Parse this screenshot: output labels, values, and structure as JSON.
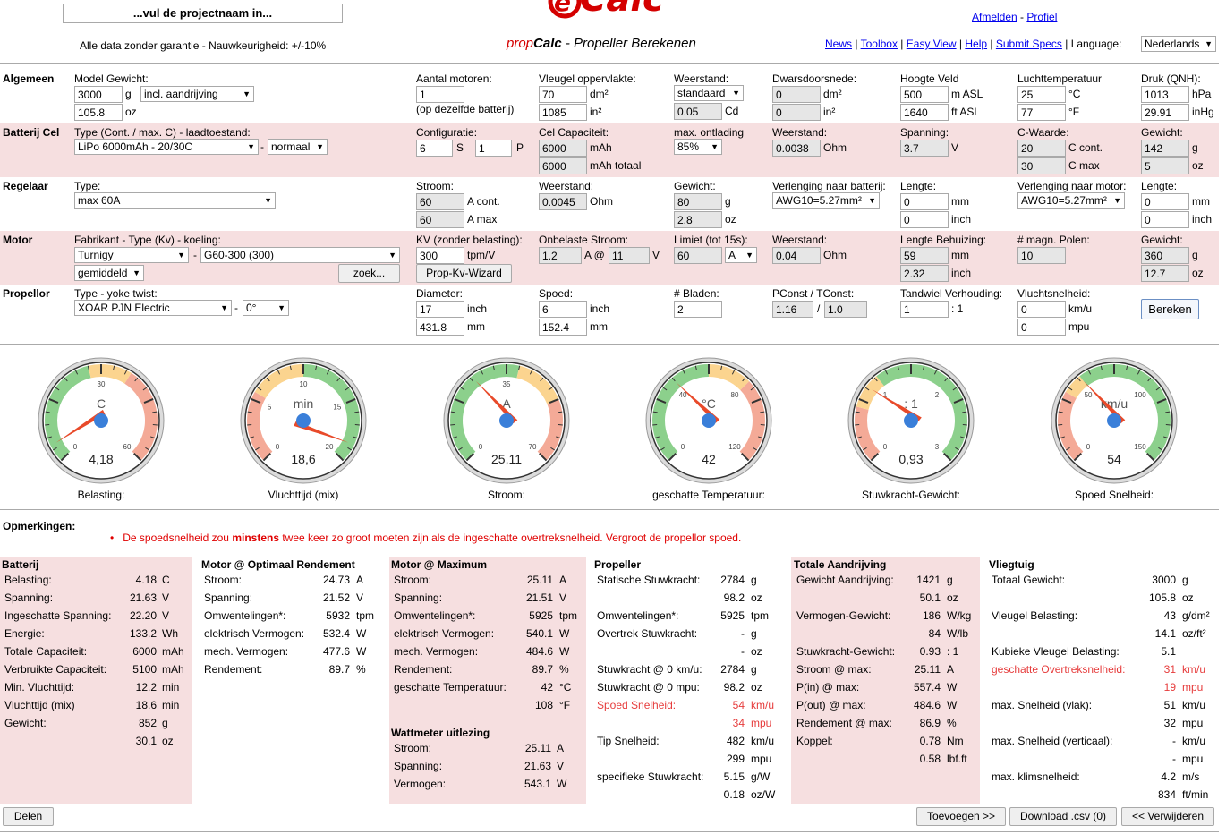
{
  "header": {
    "project_placeholder": "...vul de projectnaam in...",
    "disclaimer": "Alle data zonder garantie - Nauwkeurigheid: +/-10%",
    "logo_text": "eCalc",
    "subtitle_prop": "prop",
    "subtitle_calc": "Calc",
    "subtitle_rest": " - Propeller Berekenen",
    "links": {
      "logout": "Afmelden",
      "sep": " - ",
      "profile": "Profiel"
    },
    "nav": [
      "News",
      "Toolbox",
      "Easy View",
      "Help",
      "Submit Specs"
    ],
    "language_label": "Language:",
    "language_value": "Nederlands"
  },
  "algemeen": {
    "title": "Algemeen",
    "model_weight_label": "Model Gewicht:",
    "weight_g": "3000",
    "unit_g": "g",
    "drive_option": "incl. aandrijving",
    "weight_oz": "105.8",
    "unit_oz": "oz",
    "motors_label": "Aantal motoren:",
    "motors": "1",
    "motors_note": "(op dezelfde batterij)",
    "wing_area_label": "Vleugel oppervlakte:",
    "wing_dm2": "70",
    "unit_dm2": "dm²",
    "wing_in2": "1085",
    "unit_in2": "in²",
    "drag_label": "Weerstand:",
    "drag_option": "standaard",
    "drag_cd": "0.05",
    "unit_cd": "Cd",
    "cross_label": "Dwarsdoorsnede:",
    "cross_dm2": "0",
    "cross_in2": "0",
    "alt_label": "Hoogte Veld",
    "alt_m": "500",
    "unit_masl": "m ASL",
    "alt_ft": "1640",
    "unit_ftasl": "ft ASL",
    "temp_label": "Luchttemperatuur",
    "temp_c": "25",
    "unit_c": "°C",
    "temp_f": "77",
    "unit_f": "°F",
    "press_label": "Druk (QNH):",
    "press_hpa": "1013",
    "unit_hpa": "hPa",
    "press_inhg": "29.91",
    "unit_inhg": "inHg"
  },
  "batterij": {
    "title": "Batterij Cel",
    "type_label": "Type (Cont. / max. C) - laadtoestand:",
    "type_value": "LiPo 6000mAh - 20/30C",
    "dash": "-",
    "state_value": "normaal",
    "config_label": "Configuratie:",
    "s": "6",
    "s_unit": "S",
    "p": "1",
    "p_unit": "P",
    "cap_label": "Cel Capaciteit:",
    "cap": "6000",
    "cap_unit": "mAh",
    "cap_total": "6000",
    "cap_total_unit": "mAh totaal",
    "discharge_label": "max. ontlading",
    "discharge": "85%",
    "res_label": "Weerstand:",
    "res": "0.0038",
    "res_unit": "Ohm",
    "volt_label": "Spanning:",
    "volt": "3.7",
    "volt_unit": "V",
    "c_label": "C-Waarde:",
    "c_cont": "20",
    "c_cont_unit": "C cont.",
    "c_max": "30",
    "c_max_unit": "C max",
    "w_label": "Gewicht:",
    "w_g": "142",
    "w_g_unit": "g",
    "w_oz": "5",
    "w_oz_unit": "oz"
  },
  "regelaar": {
    "title": "Regelaar",
    "type_label": "Type:",
    "type_value": "max 60A",
    "cur_label": "Stroom:",
    "cur_cont": "60",
    "cur_cont_unit": "A cont.",
    "cur_max": "60",
    "cur_max_unit": "A max",
    "res_label": "Weerstand:",
    "res": "0.0045",
    "res_unit": "Ohm",
    "w_label": "Gewicht:",
    "w_g": "80",
    "w_g_unit": "g",
    "w_oz": "2.8",
    "w_oz_unit": "oz",
    "ext_bat_label": "Verlenging naar batterij:",
    "ext_bat": "AWG10=5.27mm²",
    "len1_label": "Lengte:",
    "len1_mm": "0",
    "mm": "mm",
    "len1_in": "0",
    "inch": "inch",
    "ext_mot_label": "Verlenging naar motor:",
    "ext_mot": "AWG10=5.27mm²",
    "len2_label": "Lengte:",
    "len2_mm": "0",
    "len2_in": "0"
  },
  "motor": {
    "title": "Motor",
    "make_label": "Fabrikant - Type (Kv) - koeling:",
    "make": "Turnigy",
    "dash": "-",
    "type": "G60-300 (300)",
    "cooling": "gemiddeld",
    "search_btn": "zoek...",
    "kv_label": "KV (zonder belasting):",
    "kv": "300",
    "kv_unit": "tpm/V",
    "wizard_btn": "Prop-Kv-Wizard",
    "idle_label": "Onbelaste Stroom:",
    "idle_a": "1.2",
    "idle_at": "A @",
    "idle_v": "11",
    "idle_v_unit": "V",
    "limit_label": "Limiet (tot 15s):",
    "limit": "60",
    "limit_unit": "A",
    "res_label": "Weerstand:",
    "res": "0.04",
    "res_unit": "Ohm",
    "case_label": "Lengte Behuizing:",
    "case_mm": "59",
    "mm": "mm",
    "case_in": "2.32",
    "inch": "inch",
    "poles_label": "# magn. Polen:",
    "poles": "10",
    "w_label": "Gewicht:",
    "w_g": "360",
    "w_g_unit": "g",
    "w_oz": "12.7",
    "w_oz_unit": "oz"
  },
  "propellor": {
    "title": "Propellor",
    "type_label": "Type - yoke twist:",
    "type_value": "XOAR PJN Electric",
    "dash": "-",
    "twist": "0°",
    "dia_label": "Diameter:",
    "dia_in": "17",
    "inch": "inch",
    "dia_mm": "431.8",
    "mm": "mm",
    "pitch_label": "Spoed:",
    "pitch_in": "6",
    "pitch_mm": "152.4",
    "blades_label": "# Bladen:",
    "blades": "2",
    "pconst_label": "PConst / TConst:",
    "pconst": "1.16",
    "slash": "/",
    "tconst": "1.0",
    "gear_label": "Tandwiel Verhouding:",
    "gear": "1",
    "gear_unit": ": 1",
    "speed_label": "Vluchtsnelheid:",
    "speed_kmh": "0",
    "kmh": "km/u",
    "speed_mph": "0",
    "mph": "mpu",
    "calc_btn": "Bereken"
  },
  "gauges": [
    {
      "unit": "C",
      "value": "4,18",
      "label": "Belasting:",
      "ticks": [
        "0",
        "30",
        "60"
      ],
      "needle_frac": 0.07
    },
    {
      "unit": "min",
      "value": "18,6",
      "label": "Vluchttijd (mix)",
      "ticks": [
        "0",
        "5",
        "10",
        "15",
        "20"
      ],
      "needle_frac": 0.93
    },
    {
      "unit": "A",
      "value": "25,11",
      "label": "Stroom:",
      "ticks": [
        "0",
        "35",
        "70"
      ],
      "needle_frac": 0.36
    },
    {
      "unit": "°C",
      "value": "42",
      "label": "geschatte Temperatuur:",
      "ticks": [
        "0",
        "40",
        "80",
        "120"
      ],
      "needle_frac": 0.35
    },
    {
      "unit": ": 1",
      "value": "0,93",
      "label": "Stuwkracht-Gewicht:",
      "ticks": [
        "0",
        "1",
        "2",
        "3"
      ],
      "needle_frac": 0.31
    },
    {
      "unit": "km/u",
      "value": "54",
      "label": "Spoed Snelheid:",
      "ticks": [
        "0",
        "50",
        "100",
        "150"
      ],
      "needle_frac": 0.36
    }
  ],
  "remarks": {
    "title": "Opmerkingen:",
    "text_pre": "De spoedsnelheid zou ",
    "text_bold": "minstens",
    "text_post": " twee keer zo groot moeten zijn als de ingeschatte overtreksnelheid. Vergroot de propellor spoed."
  },
  "results": {
    "batterij": {
      "title": "Batterij",
      "rows": [
        [
          "Belasting:",
          "4.18",
          "C"
        ],
        [
          "Spanning:",
          "21.63",
          "V"
        ],
        [
          "Ingeschatte Spanning:",
          "22.20",
          "V"
        ],
        [
          "Energie:",
          "133.2",
          "Wh"
        ],
        [
          "Totale Capaciteit:",
          "6000",
          "mAh"
        ],
        [
          "Verbruikte Capaciteit:",
          "5100",
          "mAh"
        ],
        [
          "Min. Vluchttijd:",
          "12.2",
          "min"
        ],
        [
          "Vluchttijd (mix)",
          "18.6",
          "min"
        ],
        [
          "Gewicht:",
          "852",
          "g"
        ],
        [
          "",
          "30.1",
          "oz"
        ]
      ]
    },
    "motor_opt": {
      "title": "Motor @ Optimaal Rendement",
      "rows": [
        [
          "Stroom:",
          "24.73",
          "A"
        ],
        [
          "Spanning:",
          "21.52",
          "V"
        ],
        [
          "Omwentelingen*:",
          "5932",
          "tpm"
        ],
        [
          "elektrisch Vermogen:",
          "532.4",
          "W"
        ],
        [
          "mech. Vermogen:",
          "477.6",
          "W"
        ],
        [
          "Rendement:",
          "89.7",
          "%"
        ]
      ]
    },
    "motor_max": {
      "title": "Motor @ Maximum",
      "rows": [
        [
          "Stroom:",
          "25.11",
          "A"
        ],
        [
          "Spanning:",
          "21.51",
          "V"
        ],
        [
          "Omwentelingen*:",
          "5925",
          "tpm"
        ],
        [
          "elektrisch Vermogen:",
          "540.1",
          "W"
        ],
        [
          "mech. Vermogen:",
          "484.6",
          "W"
        ],
        [
          "Rendement:",
          "89.7",
          "%"
        ],
        [
          "geschatte Temperatuur:",
          "42",
          "°C"
        ],
        [
          "",
          "108",
          "°F"
        ]
      ]
    },
    "wattmeter": {
      "title": "Wattmeter uitlezing",
      "rows": [
        [
          "Stroom:",
          "25.11",
          "A"
        ],
        [
          "Spanning:",
          "21.63",
          "V"
        ],
        [
          "Vermogen:",
          "543.1",
          "W"
        ]
      ]
    },
    "propeller": {
      "title": "Propeller",
      "rows": [
        [
          "Statische Stuwkracht:",
          "2784",
          "g"
        ],
        [
          "",
          "98.2",
          "oz"
        ],
        [
          "Omwentelingen*:",
          "5925",
          "tpm"
        ],
        [
          "Overtrek Stuwkracht:",
          "-",
          "g"
        ],
        [
          "",
          "-",
          "oz"
        ],
        [
          "Stuwkracht @ 0 km/u:",
          "2784",
          "g"
        ],
        [
          "Stuwkracht @ 0 mpu:",
          "98.2",
          "oz"
        ],
        [
          "Spoed Snelheid:",
          "54",
          "km/u"
        ],
        [
          "",
          "34",
          "mpu"
        ],
        [
          "Tip Snelheid:",
          "482",
          "km/u"
        ],
        [
          "",
          "299",
          "mpu"
        ],
        [
          "specifieke Stuwkracht:",
          "5.15",
          "g/W"
        ],
        [
          "",
          "0.18",
          "oz/W"
        ]
      ]
    },
    "totale": {
      "title": "Totale Aandrijving",
      "rows": [
        [
          "Gewicht Aandrijving:",
          "1421",
          "g"
        ],
        [
          "",
          "50.1",
          "oz"
        ],
        [
          "Vermogen-Gewicht:",
          "186",
          "W/kg"
        ],
        [
          "",
          "84",
          "W/lb"
        ],
        [
          "Stuwkracht-Gewicht:",
          "0.93",
          "1"
        ],
        [
          "Stroom @ max:",
          "25.11",
          "A"
        ],
        [
          "P(in) @ max:",
          "557.4",
          "W"
        ],
        [
          "P(out) @ max:",
          "484.6",
          "W"
        ],
        [
          "Rendement @ max:",
          "86.9",
          "%"
        ],
        [
          "Koppel:",
          "0.78",
          "Nm"
        ],
        [
          "",
          "0.58",
          "lbf.ft"
        ]
      ]
    },
    "vliegtuig": {
      "title": "Vliegtuig",
      "rows": [
        [
          "Totaal Gewicht:",
          "3000",
          "g"
        ],
        [
          "",
          "105.8",
          "oz"
        ],
        [
          "Vleugel Belasting:",
          "43",
          "g/dm²"
        ],
        [
          "",
          "14.1",
          "oz/ft²"
        ],
        [
          "Kubieke Vleugel Belasting:",
          "5.1",
          ""
        ],
        [
          "geschatte Overtreksnelheid:",
          "31",
          "km/u"
        ],
        [
          "",
          "19",
          "mpu"
        ],
        [
          "max. Snelheid (vlak):",
          "51",
          "km/u"
        ],
        [
          "",
          "32",
          "mpu"
        ],
        [
          "max. Snelheid (verticaal):",
          "-",
          "km/u"
        ],
        [
          "",
          "-",
          "mpu"
        ],
        [
          "max. klimsnelheid:",
          "4.2",
          "m/s"
        ],
        [
          "",
          "834",
          "ft/min"
        ]
      ]
    }
  },
  "footer": {
    "share": "Delen",
    "add": "Toevoegen >>",
    "download": "Download .csv (0)",
    "remove": "<< Verwijderen"
  }
}
